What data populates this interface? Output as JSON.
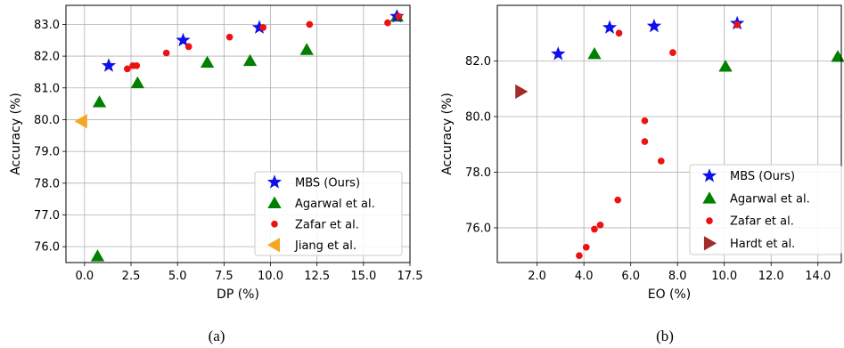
{
  "chart_data": [
    {
      "type": "scatter",
      "caption": "(a)",
      "xlabel": "DP (%)",
      "ylabel": "Accuracy (%)",
      "xlim": [
        -1.0,
        17.5
      ],
      "ylim": [
        75.5,
        83.6
      ],
      "xticks": [
        "0.0",
        "2.5",
        "5.0",
        "7.5",
        "10.0",
        "12.5",
        "15.0",
        "17.5"
      ],
      "xtick_values": [
        0,
        2.5,
        5,
        7.5,
        10,
        12.5,
        15,
        17.5
      ],
      "yticks": [
        "76.0",
        "77.0",
        "78.0",
        "79.0",
        "80.0",
        "81.0",
        "82.0",
        "83.0"
      ],
      "ytick_values": [
        76,
        77,
        78,
        79,
        80,
        81,
        82,
        83
      ],
      "grid": true,
      "legend_position": "lower-right",
      "series": [
        {
          "name": "MBS (Ours)",
          "marker": "star",
          "color": "#1010ee",
          "points": [
            [
              1.3,
              81.7
            ],
            [
              5.3,
              82.5
            ],
            [
              9.4,
              82.9
            ],
            [
              16.8,
              83.25
            ]
          ]
        },
        {
          "name": "Agarwal et al.",
          "marker": "triangle-up",
          "color": "#008000",
          "points": [
            [
              0.7,
              75.7
            ],
            [
              0.8,
              80.55
            ],
            [
              2.85,
              81.15
            ],
            [
              6.6,
              81.8
            ],
            [
              8.9,
              81.85
            ],
            [
              11.95,
              82.2
            ],
            [
              16.8,
              83.25
            ]
          ]
        },
        {
          "name": "Zafar et al.",
          "marker": "circle",
          "color": "#ee1111",
          "points": [
            [
              2.3,
              81.6
            ],
            [
              2.6,
              81.7
            ],
            [
              2.8,
              81.7
            ],
            [
              4.4,
              82.1
            ],
            [
              5.6,
              82.3
            ],
            [
              7.8,
              82.6
            ],
            [
              9.6,
              82.9
            ],
            [
              12.1,
              83.0
            ],
            [
              16.3,
              83.05
            ],
            [
              16.9,
              83.25
            ]
          ]
        },
        {
          "name": "Jiang et al.",
          "marker": "triangle-left",
          "color": "#f5a623",
          "points": [
            [
              -0.15,
              79.95
            ]
          ]
        }
      ]
    },
    {
      "type": "scatter",
      "caption": "(b)",
      "xlabel": "EO (%)",
      "ylabel": "Accuracy (%)",
      "xlim": [
        0.3,
        15.0
      ],
      "ylim": [
        74.75,
        84.0
      ],
      "xticks": [
        "2.0",
        "4.0",
        "6.0",
        "8.0",
        "10.0",
        "12.0",
        "14.0"
      ],
      "xtick_values": [
        2,
        4,
        6,
        8,
        10,
        12,
        14
      ],
      "yticks": [
        "76.0",
        "78.0",
        "80.0",
        "82.0"
      ],
      "ytick_values": [
        76,
        78,
        80,
        82
      ],
      "grid": true,
      "legend_position": "lower-right",
      "series": [
        {
          "name": "MBS (Ours)",
          "marker": "star",
          "color": "#1010ee",
          "points": [
            [
              2.9,
              82.25
            ],
            [
              5.1,
              83.2
            ],
            [
              7.0,
              83.25
            ],
            [
              10.55,
              83.35
            ]
          ]
        },
        {
          "name": "Agarwal et al.",
          "marker": "triangle-up",
          "color": "#008000",
          "points": [
            [
              4.45,
              82.25
            ],
            [
              10.05,
              81.8
            ],
            [
              14.85,
              82.15
            ]
          ]
        },
        {
          "name": "Zafar et al.",
          "marker": "circle",
          "color": "#ee1111",
          "points": [
            [
              5.5,
              83.0
            ],
            [
              7.8,
              82.3
            ],
            [
              6.6,
              79.85
            ],
            [
              6.6,
              79.1
            ],
            [
              7.3,
              78.4
            ],
            [
              5.45,
              77.0
            ],
            [
              4.7,
              76.1
            ],
            [
              4.45,
              75.95
            ],
            [
              4.1,
              75.3
            ],
            [
              3.8,
              75.0
            ],
            [
              10.55,
              83.3
            ]
          ]
        },
        {
          "name": "Hardt et al.",
          "marker": "triangle-right",
          "color": "#a52a2a",
          "points": [
            [
              1.3,
              80.9
            ]
          ]
        }
      ]
    }
  ]
}
